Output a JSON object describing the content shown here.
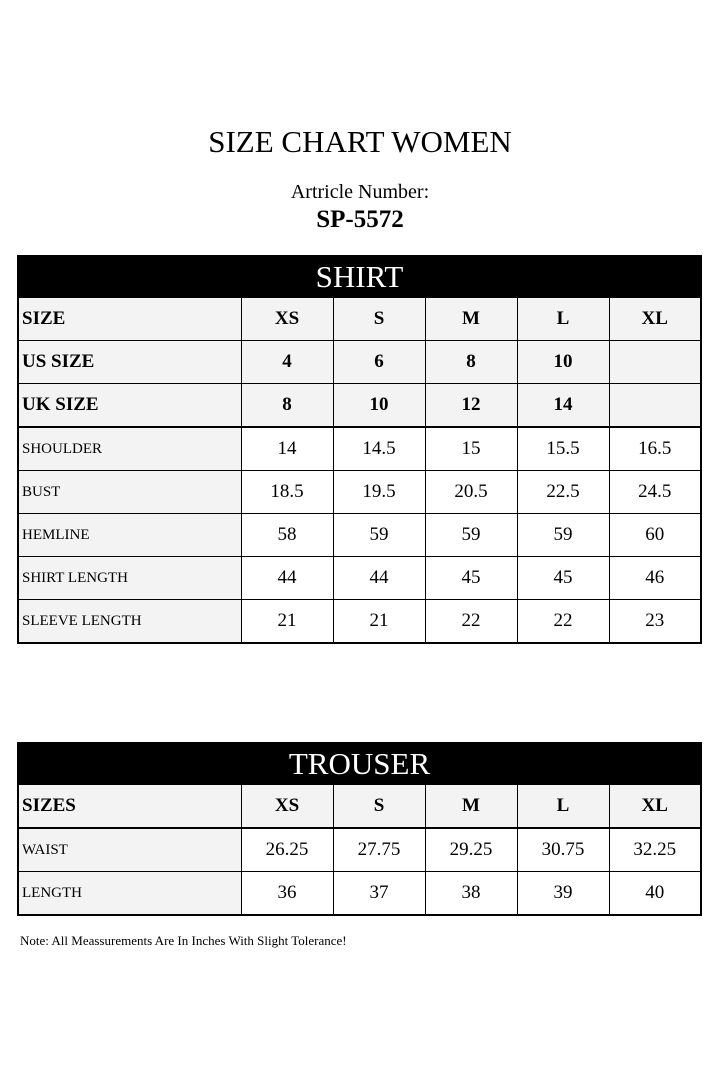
{
  "title": "SIZE CHART WOMEN",
  "article_label": "Artricle Number:",
  "article_number": "SP-5572",
  "shirt": {
    "heading": "SHIRT",
    "header_rows": [
      {
        "label": "SIZE",
        "values": [
          "XS",
          "S",
          "M",
          "L",
          "XL"
        ]
      },
      {
        "label": "US SIZE",
        "values": [
          "4",
          "6",
          "8",
          "10",
          ""
        ]
      },
      {
        "label": "UK SIZE",
        "values": [
          "8",
          "10",
          "12",
          "14",
          ""
        ]
      }
    ],
    "rows": [
      {
        "label": "SHOULDER",
        "values": [
          "14",
          "14.5",
          "15",
          "15.5",
          "16.5"
        ]
      },
      {
        "label": "BUST",
        "values": [
          "18.5",
          "19.5",
          "20.5",
          "22.5",
          "24.5"
        ]
      },
      {
        "label": "HEMLINE",
        "values": [
          "58",
          "59",
          "59",
          "59",
          "60"
        ]
      },
      {
        "label": "SHIRT LENGTH",
        "values": [
          "44",
          "44",
          "45",
          "45",
          "46"
        ]
      },
      {
        "label": "SLEEVE LENGTH",
        "values": [
          "21",
          "21",
          "22",
          "22",
          "23"
        ]
      }
    ]
  },
  "trouser": {
    "heading": "TROUSER",
    "header": {
      "label": "SIZES",
      "values": [
        "XS",
        "S",
        "M",
        "L",
        "XL"
      ]
    },
    "rows": [
      {
        "label": "WAIST",
        "values": [
          "26.25",
          "27.75",
          "29.25",
          "30.75",
          "32.25"
        ]
      },
      {
        "label": "LENGTH",
        "values": [
          "36",
          "37",
          "38",
          "39",
          "40"
        ]
      }
    ]
  },
  "note": "Note: All Meassurements Are In Inches With Slight Tolerance!"
}
